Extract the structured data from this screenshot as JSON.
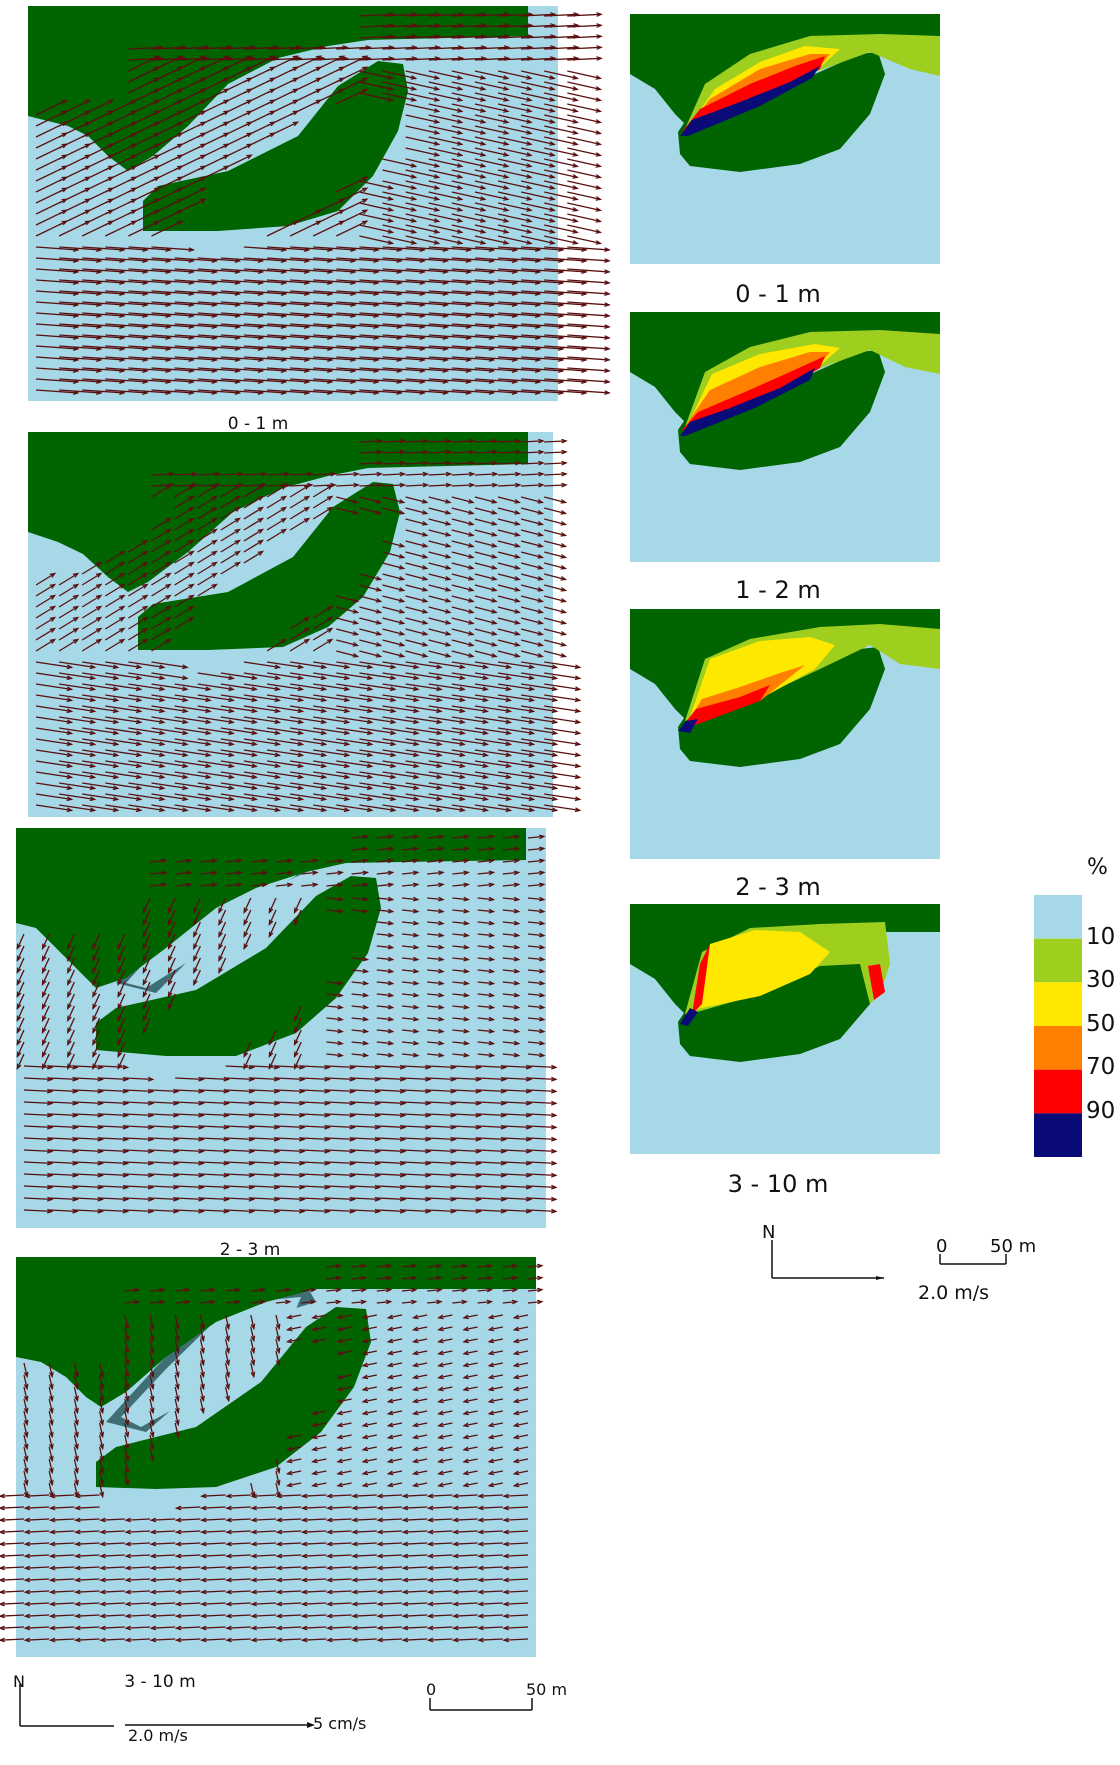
{
  "colors": {
    "land": "#006400",
    "water": "#a6d8e8",
    "arrow": "#5a0f0f",
    "dark_water": "#3f6f74",
    "legend": [
      "#a6d8e8",
      "#9ecf1f",
      "#ffe800",
      "#ff8000",
      "#ff0000",
      "#0a0a78"
    ]
  },
  "left_panels": {
    "labels": [
      "0 - 1 m",
      "",
      "2 - 3 m",
      "3 - 10 m"
    ]
  },
  "right_panels": {
    "labels": [
      "0 - 1 m",
      "1 - 2 m",
      "2 - 3 m",
      "3 - 10 m"
    ]
  },
  "legend": {
    "title": "%",
    "values": [
      "10",
      "30",
      "50",
      "70",
      "90"
    ]
  },
  "bottom_left": {
    "north": "N",
    "velocity_label": "2.0 m/s",
    "secondary_velocity_label": "5 cm/s",
    "scale_zero": "0",
    "scale_end": "50 m"
  },
  "right_scale": {
    "north": "N",
    "velocity_label": "2.0 m/s",
    "scale_zero": "0",
    "scale_end": "50 m"
  }
}
